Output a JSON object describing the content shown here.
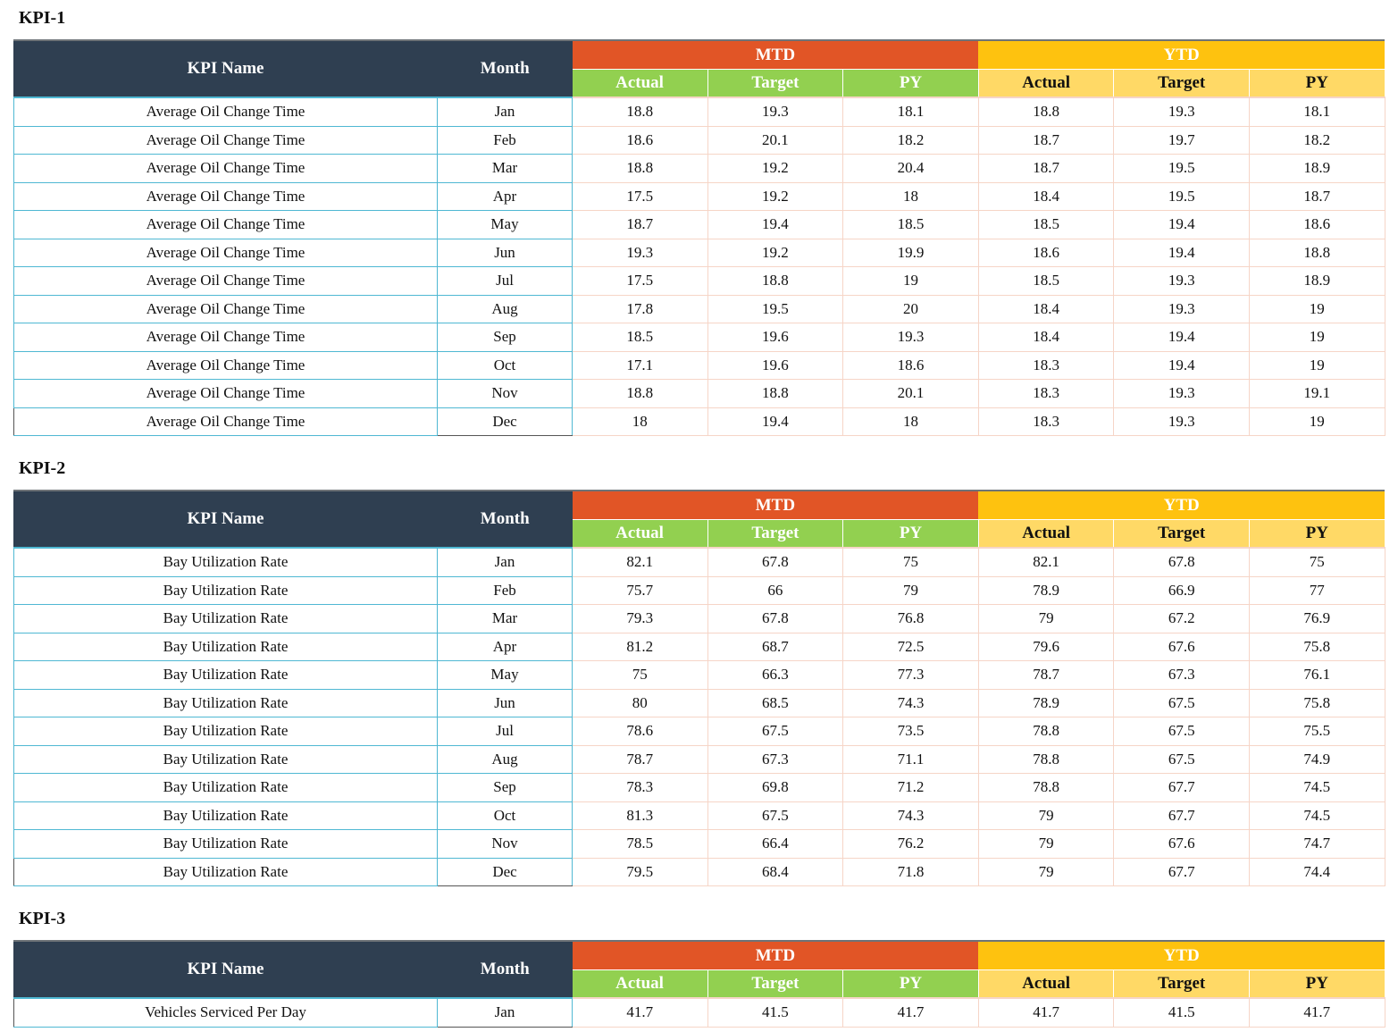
{
  "headers": {
    "kpi_name": "KPI Name",
    "month": "Month",
    "mtd": "MTD",
    "ytd": "YTD",
    "actual": "Actual",
    "target": "Target",
    "py": "PY"
  },
  "colors": {
    "header_dark": "#2f3f51",
    "mtd": "#e15526",
    "ytd": "#fec20f",
    "mtd_sub": "#92d050",
    "ytd_sub": "#ffd966",
    "name_border": "#4fb8d3",
    "value_border": "#f6d5c7"
  },
  "kpis": [
    {
      "title": "KPI-1",
      "rows": [
        {
          "name": "Average Oil Change Time",
          "month": "Jan",
          "mtd_actual": "18.8",
          "mtd_target": "19.3",
          "mtd_py": "18.1",
          "ytd_actual": "18.8",
          "ytd_target": "19.3",
          "ytd_py": "18.1"
        },
        {
          "name": "Average Oil Change Time",
          "month": "Feb",
          "mtd_actual": "18.6",
          "mtd_target": "20.1",
          "mtd_py": "18.2",
          "ytd_actual": "18.7",
          "ytd_target": "19.7",
          "ytd_py": "18.2"
        },
        {
          "name": "Average Oil Change Time",
          "month": "Mar",
          "mtd_actual": "18.8",
          "mtd_target": "19.2",
          "mtd_py": "20.4",
          "ytd_actual": "18.7",
          "ytd_target": "19.5",
          "ytd_py": "18.9"
        },
        {
          "name": "Average Oil Change Time",
          "month": "Apr",
          "mtd_actual": "17.5",
          "mtd_target": "19.2",
          "mtd_py": "18",
          "ytd_actual": "18.4",
          "ytd_target": "19.5",
          "ytd_py": "18.7"
        },
        {
          "name": "Average Oil Change Time",
          "month": "May",
          "mtd_actual": "18.7",
          "mtd_target": "19.4",
          "mtd_py": "18.5",
          "ytd_actual": "18.5",
          "ytd_target": "19.4",
          "ytd_py": "18.6"
        },
        {
          "name": "Average Oil Change Time",
          "month": "Jun",
          "mtd_actual": "19.3",
          "mtd_target": "19.2",
          "mtd_py": "19.9",
          "ytd_actual": "18.6",
          "ytd_target": "19.4",
          "ytd_py": "18.8"
        },
        {
          "name": "Average Oil Change Time",
          "month": "Jul",
          "mtd_actual": "17.5",
          "mtd_target": "18.8",
          "mtd_py": "19",
          "ytd_actual": "18.5",
          "ytd_target": "19.3",
          "ytd_py": "18.9"
        },
        {
          "name": "Average Oil Change Time",
          "month": "Aug",
          "mtd_actual": "17.8",
          "mtd_target": "19.5",
          "mtd_py": "20",
          "ytd_actual": "18.4",
          "ytd_target": "19.3",
          "ytd_py": "19"
        },
        {
          "name": "Average Oil Change Time",
          "month": "Sep",
          "mtd_actual": "18.5",
          "mtd_target": "19.6",
          "mtd_py": "19.3",
          "ytd_actual": "18.4",
          "ytd_target": "19.4",
          "ytd_py": "19"
        },
        {
          "name": "Average Oil Change Time",
          "month": "Oct",
          "mtd_actual": "17.1",
          "mtd_target": "19.6",
          "mtd_py": "18.6",
          "ytd_actual": "18.3",
          "ytd_target": "19.4",
          "ytd_py": "19"
        },
        {
          "name": "Average Oil Change Time",
          "month": "Nov",
          "mtd_actual": "18.8",
          "mtd_target": "18.8",
          "mtd_py": "20.1",
          "ytd_actual": "18.3",
          "ytd_target": "19.3",
          "ytd_py": "19.1"
        },
        {
          "name": "Average Oil Change Time",
          "month": "Dec",
          "mtd_actual": "18",
          "mtd_target": "19.4",
          "mtd_py": "18",
          "ytd_actual": "18.3",
          "ytd_target": "19.3",
          "ytd_py": "19"
        }
      ]
    },
    {
      "title": "KPI-2",
      "rows": [
        {
          "name": "Bay Utilization Rate",
          "month": "Jan",
          "mtd_actual": "82.1",
          "mtd_target": "67.8",
          "mtd_py": "75",
          "ytd_actual": "82.1",
          "ytd_target": "67.8",
          "ytd_py": "75"
        },
        {
          "name": "Bay Utilization Rate",
          "month": "Feb",
          "mtd_actual": "75.7",
          "mtd_target": "66",
          "mtd_py": "79",
          "ytd_actual": "78.9",
          "ytd_target": "66.9",
          "ytd_py": "77"
        },
        {
          "name": "Bay Utilization Rate",
          "month": "Mar",
          "mtd_actual": "79.3",
          "mtd_target": "67.8",
          "mtd_py": "76.8",
          "ytd_actual": "79",
          "ytd_target": "67.2",
          "ytd_py": "76.9"
        },
        {
          "name": "Bay Utilization Rate",
          "month": "Apr",
          "mtd_actual": "81.2",
          "mtd_target": "68.7",
          "mtd_py": "72.5",
          "ytd_actual": "79.6",
          "ytd_target": "67.6",
          "ytd_py": "75.8"
        },
        {
          "name": "Bay Utilization Rate",
          "month": "May",
          "mtd_actual": "75",
          "mtd_target": "66.3",
          "mtd_py": "77.3",
          "ytd_actual": "78.7",
          "ytd_target": "67.3",
          "ytd_py": "76.1"
        },
        {
          "name": "Bay Utilization Rate",
          "month": "Jun",
          "mtd_actual": "80",
          "mtd_target": "68.5",
          "mtd_py": "74.3",
          "ytd_actual": "78.9",
          "ytd_target": "67.5",
          "ytd_py": "75.8"
        },
        {
          "name": "Bay Utilization Rate",
          "month": "Jul",
          "mtd_actual": "78.6",
          "mtd_target": "67.5",
          "mtd_py": "73.5",
          "ytd_actual": "78.8",
          "ytd_target": "67.5",
          "ytd_py": "75.5"
        },
        {
          "name": "Bay Utilization Rate",
          "month": "Aug",
          "mtd_actual": "78.7",
          "mtd_target": "67.3",
          "mtd_py": "71.1",
          "ytd_actual": "78.8",
          "ytd_target": "67.5",
          "ytd_py": "74.9"
        },
        {
          "name": "Bay Utilization Rate",
          "month": "Sep",
          "mtd_actual": "78.3",
          "mtd_target": "69.8",
          "mtd_py": "71.2",
          "ytd_actual": "78.8",
          "ytd_target": "67.7",
          "ytd_py": "74.5"
        },
        {
          "name": "Bay Utilization Rate",
          "month": "Oct",
          "mtd_actual": "81.3",
          "mtd_target": "67.5",
          "mtd_py": "74.3",
          "ytd_actual": "79",
          "ytd_target": "67.7",
          "ytd_py": "74.5"
        },
        {
          "name": "Bay Utilization Rate",
          "month": "Nov",
          "mtd_actual": "78.5",
          "mtd_target": "66.4",
          "mtd_py": "76.2",
          "ytd_actual": "79",
          "ytd_target": "67.6",
          "ytd_py": "74.7"
        },
        {
          "name": "Bay Utilization Rate",
          "month": "Dec",
          "mtd_actual": "79.5",
          "mtd_target": "68.4",
          "mtd_py": "71.8",
          "ytd_actual": "79",
          "ytd_target": "67.7",
          "ytd_py": "74.4"
        }
      ]
    },
    {
      "title": "KPI-3",
      "rows": [
        {
          "name": "Vehicles Serviced Per Day",
          "month": "Jan",
          "mtd_actual": "41.7",
          "mtd_target": "41.5",
          "mtd_py": "41.7",
          "ytd_actual": "41.7",
          "ytd_target": "41.5",
          "ytd_py": "41.7"
        }
      ]
    }
  ]
}
